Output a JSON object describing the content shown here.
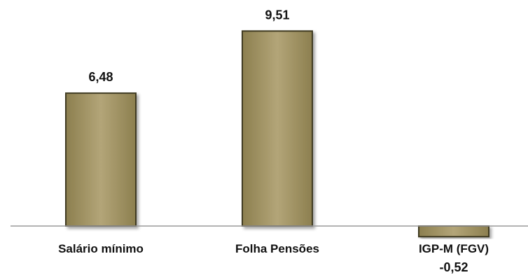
{
  "chart_data": {
    "type": "bar",
    "categories": [
      "Salário mínimo",
      "Folha Pensões",
      "IGP-M (FGV)"
    ],
    "values": [
      6.48,
      9.51,
      -0.52
    ],
    "data_labels": [
      "6,48",
      "9,51",
      "-0,52"
    ],
    "title": "",
    "xlabel": "",
    "ylabel": "",
    "ylim": [
      -1,
      10
    ],
    "grid": false,
    "legend": "none",
    "colors": {
      "bar_fill_light": "#b3a578",
      "bar_fill_dark": "#8c7f4f",
      "bar_stroke": "#3f3a22",
      "axis": "#9a9a9a"
    }
  }
}
